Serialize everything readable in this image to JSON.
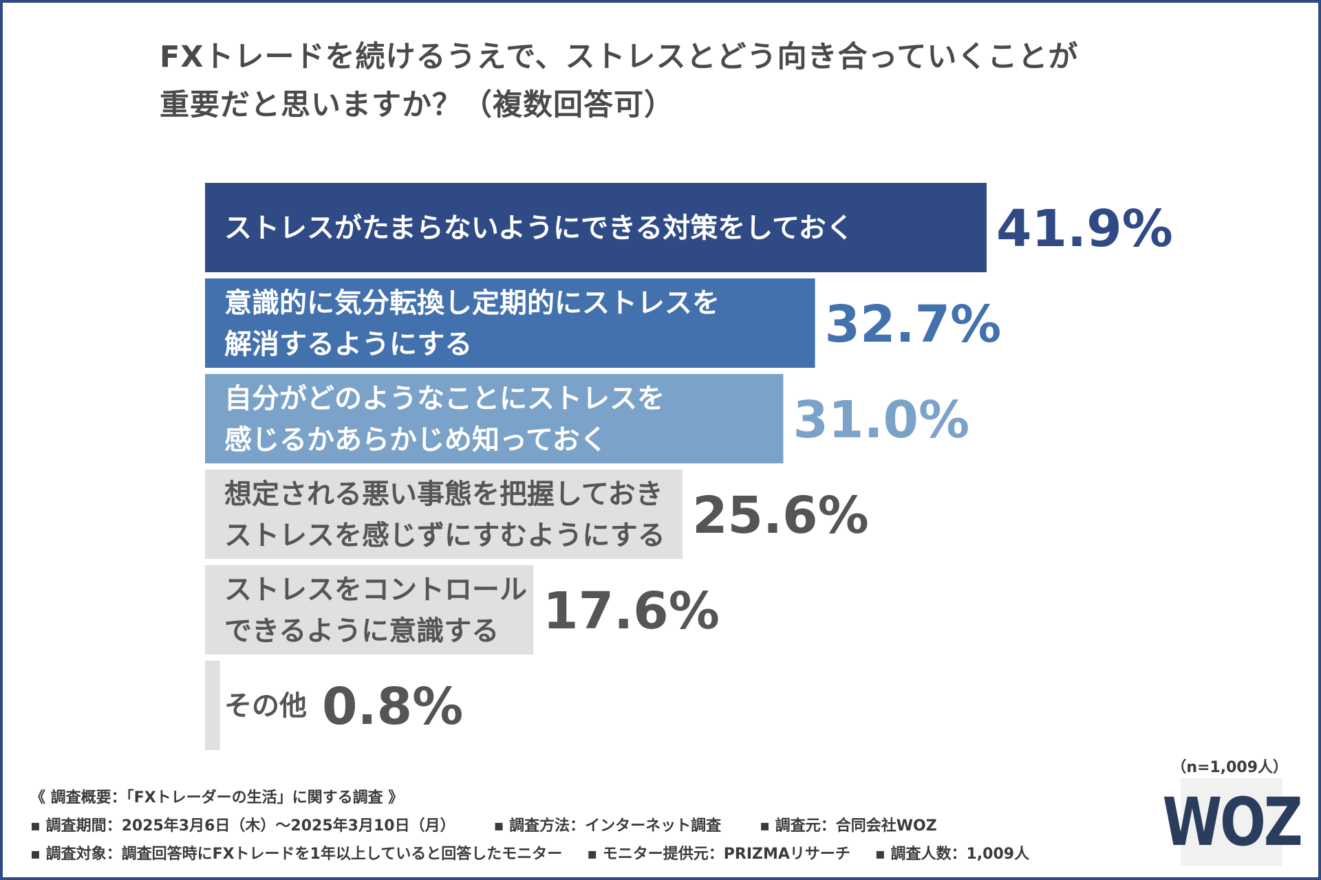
{
  "title": {
    "line1": "FXトレードを続けるうえで、ストレスとどう向き合っていくことが",
    "line2": "重要だと思いますか？（複数回答可）"
  },
  "chart_data": {
    "type": "bar",
    "orientation": "horizontal",
    "categories": [
      [
        "ストレスがたまらないようにできる対策をしておく"
      ],
      [
        "意識的に気分転換し定期的にストレスを",
        "解消するようにする"
      ],
      [
        "自分がどのようなことにストレスを",
        "感じるかあらかじめ知っておく"
      ],
      [
        "想定される悪い事態を把握しておき",
        "ストレスを感じずにすむようにする"
      ],
      [
        "ストレスをコントロール",
        "できるように意識する"
      ],
      [
        "その他"
      ]
    ],
    "values": [
      41.9,
      32.7,
      31.0,
      25.6,
      17.6,
      0.8
    ],
    "value_labels": [
      "41.9%",
      "32.7%",
      "31.0%",
      "25.6%",
      "17.6%",
      "0.8%"
    ],
    "bar_colors": [
      "#2f4a85",
      "#4371ad",
      "#7ba2c8",
      "#e0e0e0",
      "#e0e0e0",
      "#e0e0e0"
    ],
    "label_colors": [
      "#ffffff",
      "#ffffff",
      "#ffffff",
      "#555555",
      "#555555",
      "#555555"
    ],
    "value_colors": [
      "#2f4a85",
      "#4371ad",
      "#7ba2c8",
      "#555555",
      "#555555",
      "#555555"
    ],
    "unit": "%"
  },
  "sample_size": "（n=1,009人）",
  "footer": {
    "heading": "《 調査概要：「FXトレーダーの生活」に関する調査 》",
    "period": "▪ 調査期間：2025年3月6日（木）～2025年3月10日（月）",
    "method": "▪ 調査方法：インターネット調査",
    "source": "▪ 調査元：合同会社WOZ",
    "target": "▪ 調査対象：調査回答時にFXトレードを1年以上していると回答したモニター",
    "provider": "▪ モニター提供元：PRIZMAリサーチ",
    "count": "▪ 調査人数：1,009人"
  },
  "logo": {
    "text": "WOZ"
  },
  "colors": {
    "frame": "#2f4a85",
    "text": "#4a4a4a",
    "logo_bg": "#f1f1f1",
    "logo_text": "#2b3d5c"
  }
}
